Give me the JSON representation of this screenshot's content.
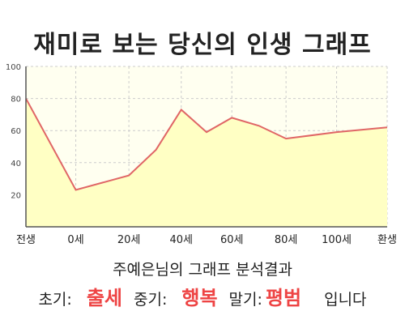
{
  "title": "재미로 보는 당신의 인생 그래프",
  "chart_data": {
    "type": "area",
    "x_labels": [
      "전생",
      "0세",
      "20세",
      "40세",
      "60세",
      "80세",
      "100세",
      "환생"
    ],
    "y_ticks": [
      20,
      40,
      60,
      80,
      100
    ],
    "ylim": [
      0,
      100
    ],
    "points": [
      {
        "label": "전생",
        "value": 80
      },
      {
        "label": "0세",
        "value": 23
      },
      {
        "label": "20세",
        "value": 32
      },
      {
        "label": "30세",
        "value": 48
      },
      {
        "label": "40세",
        "value": 73
      },
      {
        "label": "50세",
        "value": 59
      },
      {
        "label": "60세",
        "value": 68
      },
      {
        "label": "70세",
        "value": 63
      },
      {
        "label": "80세",
        "value": 55
      },
      {
        "label": "100세",
        "value": 59
      },
      {
        "label": "환생",
        "value": 62
      }
    ],
    "grid": true,
    "colors": {
      "line": "#e06666",
      "fill": "#ffffc4",
      "grid": "#cccccc",
      "plot_bg": "#fffff0"
    }
  },
  "result": {
    "subtitle": "주예은님의 그래프 분석결과",
    "early_label": "초기:",
    "early_value": "출세",
    "middle_label": "중기:",
    "middle_value": "행복",
    "late_label": "말기:",
    "late_value": "평범",
    "suffix": "입니다",
    "accent_color": "#ee4444"
  }
}
